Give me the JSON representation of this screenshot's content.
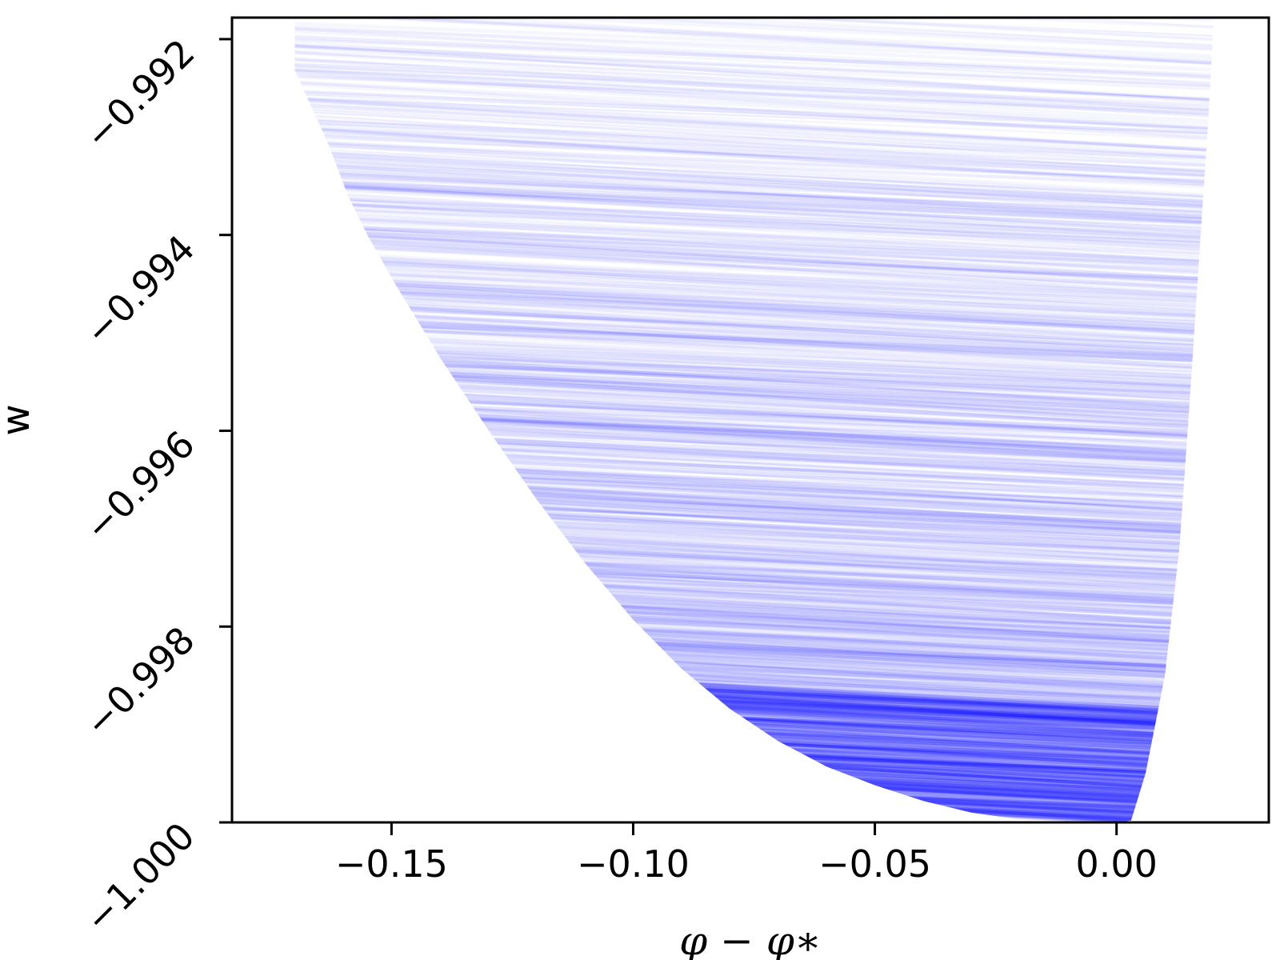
{
  "chart_data": {
    "type": "line",
    "title": "",
    "xlabel": "φ − φ∗",
    "ylabel": "w",
    "xlim": [
      -0.183,
      0.0315
    ],
    "ylim": [
      -1.0,
      -0.99178
    ],
    "xticks": [
      -0.15,
      -0.1,
      -0.05,
      0.0
    ],
    "xtick_labels": [
      "−0.15",
      "−0.10",
      "−0.05",
      "0.00"
    ],
    "yticks": [
      -1.0,
      -0.998,
      -0.996,
      -0.994,
      -0.992
    ],
    "ytick_labels": [
      "−1.000",
      "−0.998",
      "−0.996",
      "−0.994",
      "−0.992"
    ],
    "grid": false,
    "legend": "none",
    "series_color": "#0000ff",
    "description_of_marks": "dense bundle of semi-transparent blue trajectories; the lower-left envelope of the filled region and its right edge are given below in data units",
    "envelope_left": {
      "x": [
        -0.17,
        -0.163,
        -0.159,
        -0.155,
        -0.149,
        -0.14,
        -0.13,
        -0.12,
        -0.11,
        -0.1,
        -0.09,
        -0.08,
        -0.07,
        -0.06,
        -0.05,
        -0.04,
        -0.03,
        -0.02,
        -0.01,
        0.0
      ],
      "y": [
        -0.99232,
        -0.99308,
        -0.9936,
        -0.994,
        -0.99452,
        -0.99525,
        -0.99599,
        -0.9967,
        -0.99735,
        -0.99793,
        -0.99843,
        -0.99884,
        -0.99917,
        -0.99943,
        -0.99962,
        -0.99978,
        -0.9999,
        -0.99997,
        -0.99999,
        -1.0
      ]
    },
    "envelope_right": {
      "x": [
        0.003,
        0.006,
        0.01,
        0.013,
        0.015,
        0.017,
        0.019,
        0.021,
        0.0215
      ],
      "y": [
        -0.99998,
        -0.9995,
        -0.9985,
        -0.9972,
        -0.9958,
        -0.9943,
        -0.9928,
        -0.991,
        -0.992
      ]
    },
    "trajectory_slope_range": [
      -0.0032,
      -0.0018
    ]
  }
}
